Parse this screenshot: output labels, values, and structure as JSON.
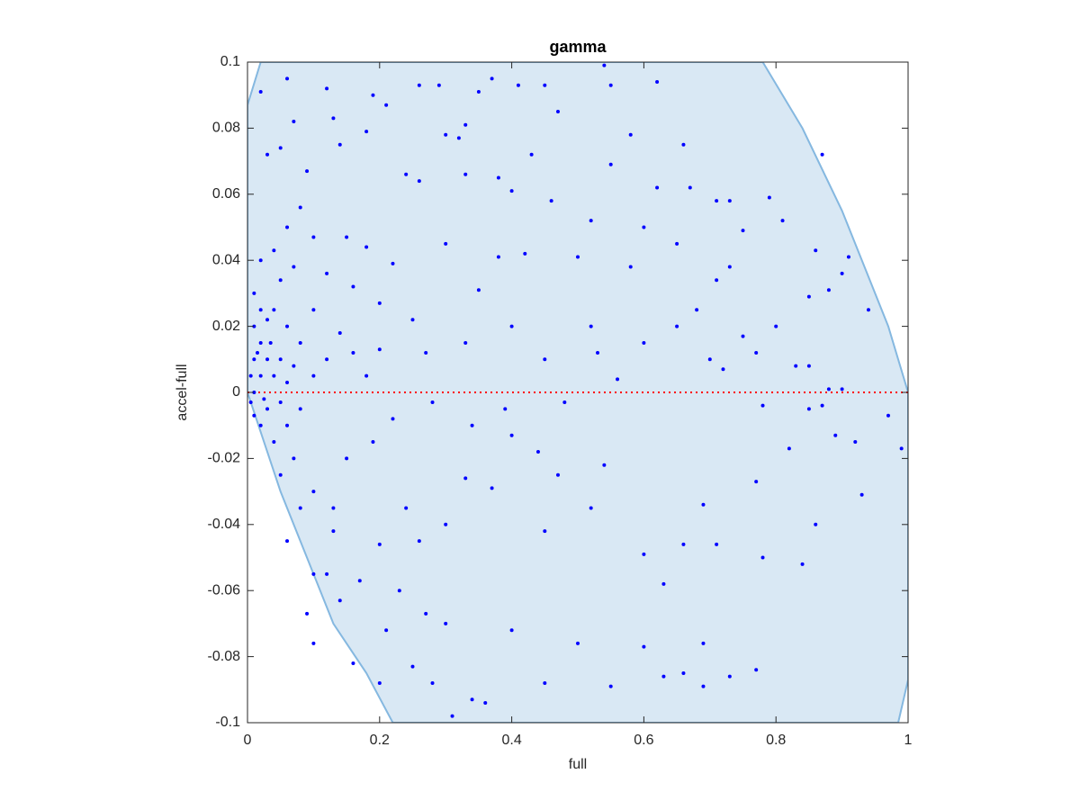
{
  "chart_data": {
    "type": "scatter",
    "title": "gamma",
    "xlabel": "full",
    "ylabel": "accel-full",
    "xlim": [
      0,
      1
    ],
    "ylim": [
      -0.1,
      0.1
    ],
    "xticks": [
      0,
      0.2,
      0.4,
      0.6,
      0.8,
      1
    ],
    "yticks": [
      -0.1,
      -0.08,
      -0.06,
      -0.04,
      -0.02,
      0,
      0.02,
      0.04,
      0.06,
      0.08,
      0.1
    ],
    "grid": false,
    "region": {
      "color": "#d9e8f4",
      "edge_color": "#85b8e0",
      "x": [
        0,
        0.02,
        0.78,
        0.84,
        0.9,
        0.94,
        0.97,
        1,
        1,
        0.985,
        0.22,
        0.18,
        0.13,
        0.09,
        0.05,
        0.02,
        0
      ],
      "y": [
        0.087,
        0.1,
        0.1,
        0.08,
        0.055,
        0.035,
        0.02,
        0,
        -0.087,
        -0.1,
        -0.1,
        -0.085,
        -0.07,
        -0.05,
        -0.03,
        -0.012,
        0
      ]
    },
    "reference_line": {
      "y": 0,
      "color": "#ff0000"
    },
    "series": [
      {
        "color": "#0000ff",
        "x": [
          0.02,
          0.03,
          0.06,
          0.05,
          0.07,
          0.09,
          0.12,
          0.14,
          0.13,
          0.18,
          0.19,
          0.21,
          0.26,
          0.29,
          0.33,
          0.35,
          0.37,
          0.41,
          0.45,
          0.54,
          0.55,
          0.62,
          0.47,
          0.58,
          0.66,
          0.43,
          0.3,
          0.32,
          0.24,
          0.26,
          0.33,
          0.38,
          0.4,
          0.55,
          0.62,
          0.67,
          0.71,
          0.73,
          0.79,
          0.87,
          0.46,
          0.52,
          0.6,
          0.65,
          0.75,
          0.81,
          0.86,
          0.9,
          0.91,
          0.94,
          0.88,
          0.85,
          0.71,
          0.68,
          0.73,
          0.58,
          0.5,
          0.42,
          0.38,
          0.35,
          0.3,
          0.22,
          0.18,
          0.15,
          0.1,
          0.08,
          0.06,
          0.04,
          0.02,
          0.05,
          0.07,
          0.12,
          0.16,
          0.2,
          0.25,
          0.27,
          0.33,
          0.4,
          0.45,
          0.52,
          0.53,
          0.56,
          0.6,
          0.65,
          0.7,
          0.72,
          0.75,
          0.77,
          0.8,
          0.83,
          0.85,
          0.88,
          0.9,
          0.85,
          0.87,
          0.78,
          0.82,
          0.89,
          0.92,
          0.97,
          0.99,
          0.93,
          0.86,
          0.84,
          0.77,
          0.78,
          0.71,
          0.66,
          0.69,
          0.6,
          0.63,
          0.54,
          0.52,
          0.47,
          0.45,
          0.44,
          0.4,
          0.37,
          0.33,
          0.3,
          0.26,
          0.24,
          0.2,
          0.17,
          0.14,
          0.12,
          0.1,
          0.09,
          0.1,
          0.16,
          0.21,
          0.2,
          0.25,
          0.28,
          0.31,
          0.34,
          0.36,
          0.45,
          0.55,
          0.63,
          0.66,
          0.69,
          0.73,
          0.77,
          0.69,
          0.6,
          0.5,
          0.4,
          0.3,
          0.27,
          0.23,
          0.13,
          0.08,
          0.06,
          0.05,
          0.07,
          0.1,
          0.13,
          0.15,
          0.19,
          0.22,
          0.28,
          0.34,
          0.39,
          0.48,
          0.02,
          0.04,
          0.06,
          0.08,
          0.1,
          0.12,
          0.14,
          0.16,
          0.18,
          0.2,
          0.04,
          0.06,
          0.08,
          0.1,
          0.01,
          0.01,
          0.01,
          0.005,
          0.01,
          0.005,
          0.01,
          0.02,
          0.02,
          0.03,
          0.03,
          0.03,
          0.02,
          0.04,
          0.05,
          0.05,
          0.06,
          0.07,
          0.015,
          0.025,
          0.035
        ],
        "values": [
          0.091,
          0.072,
          0.095,
          0.074,
          0.082,
          0.067,
          0.092,
          0.075,
          0.083,
          0.079,
          0.09,
          0.087,
          0.093,
          0.093,
          0.081,
          0.091,
          0.095,
          0.093,
          0.093,
          0.099,
          0.093,
          0.094,
          0.085,
          0.078,
          0.075,
          0.072,
          0.078,
          0.077,
          0.066,
          0.064,
          0.066,
          0.065,
          0.061,
          0.069,
          0.062,
          0.062,
          0.058,
          0.058,
          0.059,
          0.072,
          0.058,
          0.052,
          0.05,
          0.045,
          0.049,
          0.052,
          0.043,
          0.036,
          0.041,
          0.025,
          0.031,
          0.029,
          0.034,
          0.025,
          0.038,
          0.038,
          0.041,
          0.042,
          0.041,
          0.031,
          0.045,
          0.039,
          0.044,
          0.047,
          0.047,
          0.056,
          0.05,
          0.043,
          0.04,
          0.034,
          0.038,
          0.036,
          0.032,
          0.027,
          0.022,
          0.012,
          0.015,
          0.02,
          0.01,
          0.02,
          0.012,
          0.004,
          0.015,
          0.02,
          0.01,
          0.007,
          0.017,
          0.012,
          0.02,
          0.008,
          0.008,
          0.001,
          0.001,
          -0.005,
          -0.004,
          -0.004,
          -0.017,
          -0.013,
          -0.015,
          -0.007,
          -0.017,
          -0.031,
          -0.04,
          -0.052,
          -0.027,
          -0.05,
          -0.046,
          -0.046,
          -0.034,
          -0.049,
          -0.058,
          -0.022,
          -0.035,
          -0.025,
          -0.042,
          -0.018,
          -0.013,
          -0.029,
          -0.026,
          -0.04,
          -0.045,
          -0.035,
          -0.046,
          -0.057,
          -0.063,
          -0.055,
          -0.055,
          -0.067,
          -0.076,
          -0.082,
          -0.072,
          -0.088,
          -0.083,
          -0.088,
          -0.098,
          -0.093,
          -0.094,
          -0.088,
          -0.089,
          -0.086,
          -0.085,
          -0.089,
          -0.086,
          -0.084,
          -0.076,
          -0.077,
          -0.076,
          -0.072,
          -0.07,
          -0.067,
          -0.06,
          -0.042,
          -0.035,
          -0.045,
          -0.025,
          -0.02,
          -0.03,
          -0.035,
          -0.02,
          -0.015,
          -0.008,
          -0.003,
          -0.01,
          -0.005,
          -0.003,
          -0.01,
          -0.015,
          -0.01,
          -0.005,
          0.005,
          0.01,
          0.018,
          0.012,
          0.005,
          0.013,
          0.025,
          0.02,
          0.015,
          0.025,
          0.03,
          0.02,
          0.01,
          0.005,
          0,
          -0.003,
          -0.007,
          0.005,
          0.015,
          0.01,
          -0.005,
          0.022,
          0.025,
          0.005,
          0.01,
          -0.003,
          0.003,
          0.008,
          0.012,
          -0.002,
          0.015
        ]
      }
    ]
  }
}
